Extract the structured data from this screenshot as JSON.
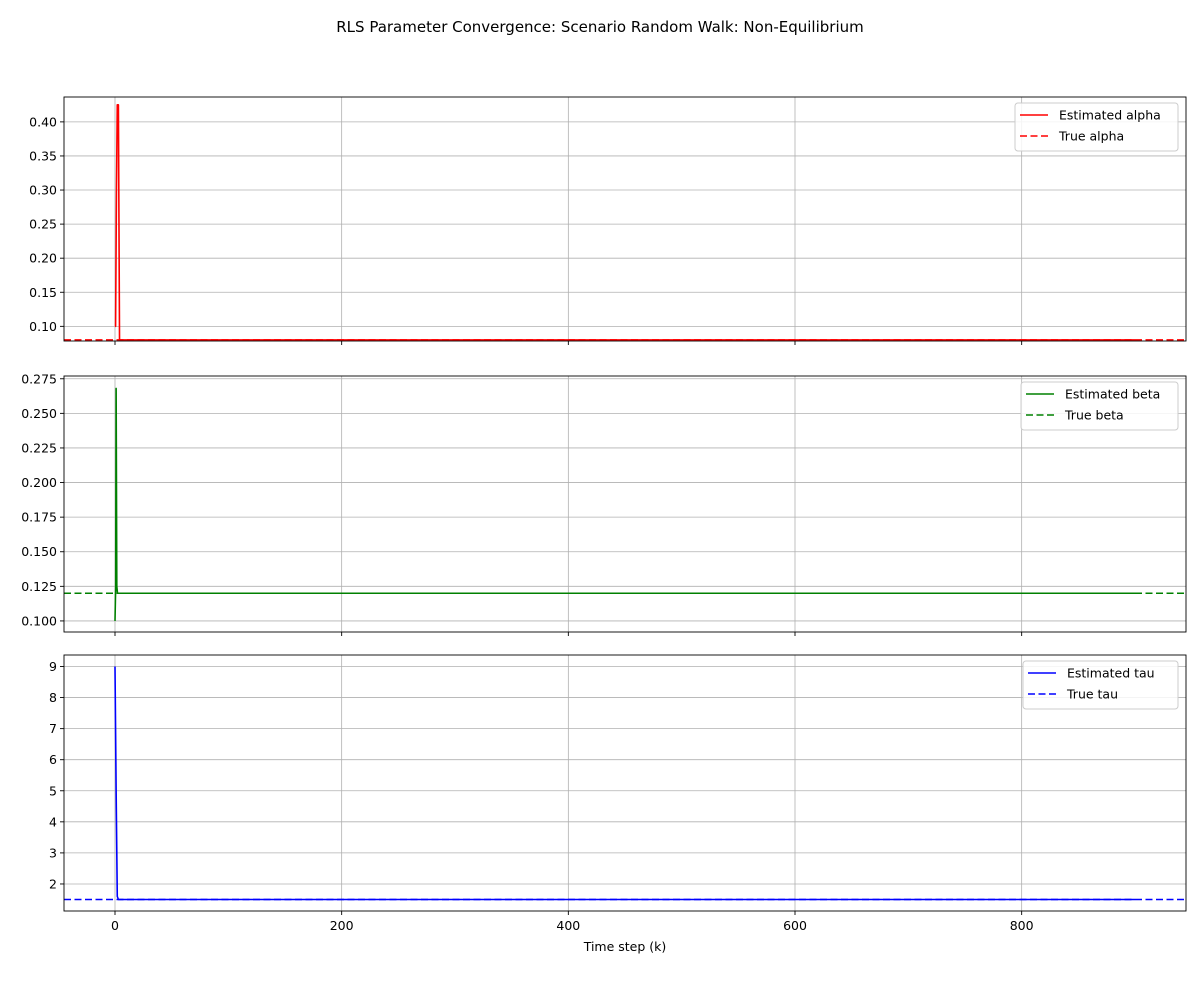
{
  "figure": {
    "title": "RLS Parameter Convergence: Scenario Random Walk: Non-Equilibrium",
    "xlabel": "Time step (k)"
  },
  "chart_data": [
    {
      "type": "line",
      "title": "",
      "xlabel": "",
      "ylabel": "",
      "xlim": [
        -45,
        945
      ],
      "ylim": [
        0.0785,
        0.4365
      ],
      "xticks": [
        0,
        200,
        400,
        600,
        800
      ],
      "yticks": [
        0.1,
        0.15,
        0.2,
        0.25,
        0.3,
        0.35,
        0.4
      ],
      "ytick_labels": [
        "0.10",
        "0.15",
        "0.20",
        "0.25",
        "0.30",
        "0.35",
        "0.40"
      ],
      "grid": true,
      "legend": "top-right",
      "series": [
        {
          "name": "Estimated alpha",
          "color": "#ff0000",
          "style": "solid",
          "points": [
            [
              0,
              0.1
            ],
            [
              0.5,
              0.1
            ],
            [
              1.3,
              0.3
            ],
            [
              2,
              0.425
            ],
            [
              3,
              0.425
            ],
            [
              4,
              0.08
            ],
            [
              900,
              0.08
            ]
          ]
        },
        {
          "name": "True alpha",
          "color": "#ff0000",
          "style": "dashed",
          "hline": 0.08
        }
      ]
    },
    {
      "type": "line",
      "title": "",
      "xlabel": "",
      "ylabel": "",
      "xlim": [
        -45,
        945
      ],
      "ylim": [
        0.092,
        0.277
      ],
      "xticks": [
        0,
        200,
        400,
        600,
        800
      ],
      "yticks": [
        0.1,
        0.125,
        0.15,
        0.175,
        0.2,
        0.225,
        0.25,
        0.275
      ],
      "ytick_labels": [
        "0.100",
        "0.125",
        "0.150",
        "0.175",
        "0.200",
        "0.225",
        "0.250",
        "0.275"
      ],
      "grid": true,
      "legend": "top-right",
      "series": [
        {
          "name": "Estimated beta",
          "color": "#008000",
          "style": "solid",
          "points": [
            [
              0,
              0.1
            ],
            [
              0.6,
              0.125
            ],
            [
              1,
              0.268
            ],
            [
              1.6,
              0.125
            ],
            [
              2.2,
              0.12
            ],
            [
              900,
              0.12
            ]
          ]
        },
        {
          "name": "True beta",
          "color": "#008000",
          "style": "dashed",
          "hline": 0.12
        }
      ]
    },
    {
      "type": "line",
      "title": "",
      "xlabel": "Time step (k)",
      "ylabel": "",
      "xlim": [
        -45,
        945
      ],
      "ylim": [
        1.13,
        9.37
      ],
      "xticks": [
        0,
        200,
        400,
        600,
        800
      ],
      "yticks": [
        2,
        3,
        4,
        5,
        6,
        7,
        8,
        9
      ],
      "ytick_labels": [
        "2",
        "3",
        "4",
        "5",
        "6",
        "7",
        "8",
        "9"
      ],
      "grid": true,
      "legend": "top-right",
      "series": [
        {
          "name": "Estimated tau",
          "color": "#0000ff",
          "style": "solid",
          "points": [
            [
              0,
              9.0
            ],
            [
              1,
              5.0
            ],
            [
              2,
              1.6
            ],
            [
              3,
              1.5
            ],
            [
              900,
              1.5
            ]
          ]
        },
        {
          "name": "True tau",
          "color": "#0000ff",
          "style": "dashed",
          "hline": 1.5
        }
      ]
    }
  ]
}
